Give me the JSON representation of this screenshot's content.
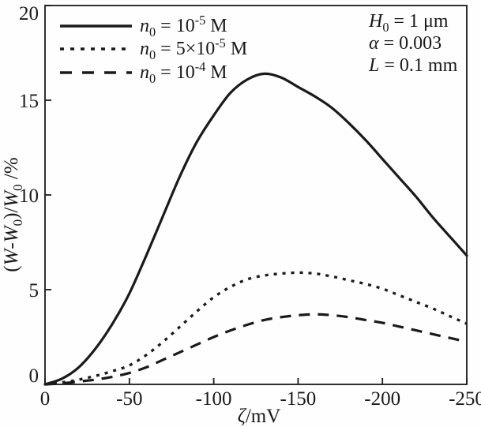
{
  "figure": {
    "background": "#fefefe",
    "ink_color": "#1a1a1a"
  },
  "chart_data": {
    "type": "line",
    "title": "",
    "xlabel": "ζ/mV",
    "ylabel": "(W-W₀)/W₀ /%",
    "xlim": [
      0,
      -250
    ],
    "ylim": [
      0,
      20
    ],
    "x_ticks": [
      0,
      -50,
      -100,
      -150,
      -200,
      -250
    ],
    "y_ticks": [
      0,
      5,
      10,
      15,
      20
    ],
    "grid": false,
    "legend_position": "top-left",
    "x": [
      0,
      -10,
      -20,
      -30,
      -40,
      -50,
      -60,
      -70,
      -80,
      -90,
      -100,
      -110,
      -120,
      -130,
      -140,
      -150,
      -160,
      -170,
      -180,
      -190,
      -200,
      -210,
      -220,
      -230,
      -240,
      -250
    ],
    "series": [
      {
        "name": "n₀ = 10⁻⁵ M",
        "line_style": "solid",
        "values": [
          0,
          0.3,
          0.9,
          1.9,
          3.2,
          4.8,
          6.8,
          8.9,
          11.0,
          12.8,
          14.2,
          15.4,
          16.1,
          16.4,
          16.2,
          15.7,
          15.2,
          14.6,
          13.8,
          12.9,
          11.9,
          10.9,
          9.9,
          8.8,
          7.8,
          6.8
        ],
        "peak": {
          "x": -130,
          "y": 16.4
        }
      },
      {
        "name": "n₀ = 5×10⁻⁵ M",
        "line_style": "dotted",
        "values": [
          0,
          0.1,
          0.25,
          0.45,
          0.7,
          1.0,
          1.55,
          2.25,
          3.05,
          3.85,
          4.6,
          5.15,
          5.55,
          5.75,
          5.85,
          5.9,
          5.85,
          5.7,
          5.5,
          5.3,
          5.05,
          4.7,
          4.35,
          4.0,
          3.6,
          3.2
        ],
        "peak": {
          "x": -150,
          "y": 5.9
        }
      },
      {
        "name": "n₀ = 10⁻⁴ M",
        "line_style": "dashed",
        "values": [
          0,
          0.05,
          0.15,
          0.25,
          0.4,
          0.6,
          0.9,
          1.3,
          1.7,
          2.1,
          2.5,
          2.85,
          3.15,
          3.4,
          3.55,
          3.65,
          3.7,
          3.65,
          3.55,
          3.4,
          3.25,
          3.05,
          2.85,
          2.65,
          2.45,
          2.25
        ],
        "peak": {
          "x": -160,
          "y": 3.7
        }
      }
    ],
    "annotations": [
      "H₀ = 1 μm",
      "α = 0.003",
      "L = 0.1 mm"
    ]
  },
  "rich_labels": {
    "xlabel": [
      {
        "i": "ζ"
      },
      {
        "t": "/mV"
      }
    ],
    "ylabel": [
      {
        "t": "("
      },
      {
        "i": "W"
      },
      {
        "t": "-"
      },
      {
        "i": "W"
      },
      {
        "sub": "0"
      },
      {
        "t": ")/"
      },
      {
        "i": "W"
      },
      {
        "sub": "0"
      },
      {
        "t": " /%"
      }
    ],
    "legend": [
      [
        {
          "i": "n"
        },
        {
          "sub": "0"
        },
        {
          "t": " = 10"
        },
        {
          "sup": "-5"
        },
        {
          "t": " M"
        }
      ],
      [
        {
          "i": "n"
        },
        {
          "sub": "0"
        },
        {
          "t": " = 5×10"
        },
        {
          "sup": "-5"
        },
        {
          "t": " M"
        }
      ],
      [
        {
          "i": "n"
        },
        {
          "sub": "0"
        },
        {
          "t": " = 10"
        },
        {
          "sup": "-4"
        },
        {
          "t": " M"
        }
      ]
    ],
    "annotations": [
      [
        {
          "i": "H"
        },
        {
          "sub": "0"
        },
        {
          "t": " = 1 μm"
        }
      ],
      [
        {
          "i": "α"
        },
        {
          "t": " = 0.003"
        }
      ],
      [
        {
          "i": "L"
        },
        {
          "t": " = 0.1 mm"
        }
      ]
    ]
  }
}
